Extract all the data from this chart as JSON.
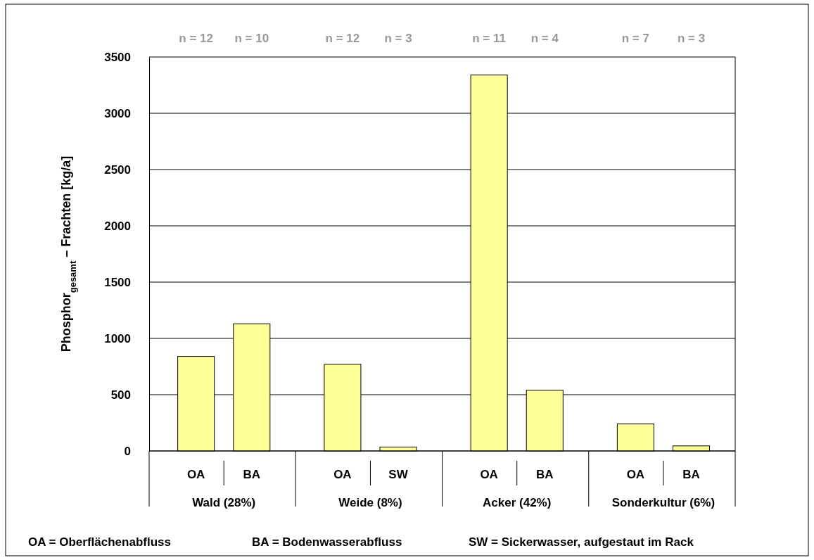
{
  "chart_data": {
    "type": "bar",
    "ylabel": "Phosphor$_{gesamt}$ – Frachten [kg/a]",
    "categories": [
      "OA",
      "BA",
      "OA",
      "SW",
      "OA",
      "BA",
      "OA",
      "BA"
    ],
    "values": [
      840,
      1130,
      770,
      35,
      3340,
      540,
      240,
      45
    ],
    "color": "#ffff99",
    "ylim": [
      0,
      3500
    ],
    "yticks": [
      0,
      500,
      1000,
      1500,
      2000,
      2500,
      3000,
      3500
    ],
    "grid": "y",
    "annotations": [
      "n = 12",
      "n = 10",
      "n = 12",
      "n = 3",
      "n = 11",
      "n = 4",
      "n = 7",
      "n = 3",
      "Wald (28%)",
      "Weide (8%)",
      "Acker (42%)",
      "Sonderkultur (6%)",
      "OA = Oberflächenabfluss",
      "BA = Bodenwasserabfluss",
      "SW = Sickerwasser, aufgestaut im Rack"
    ]
  }
}
